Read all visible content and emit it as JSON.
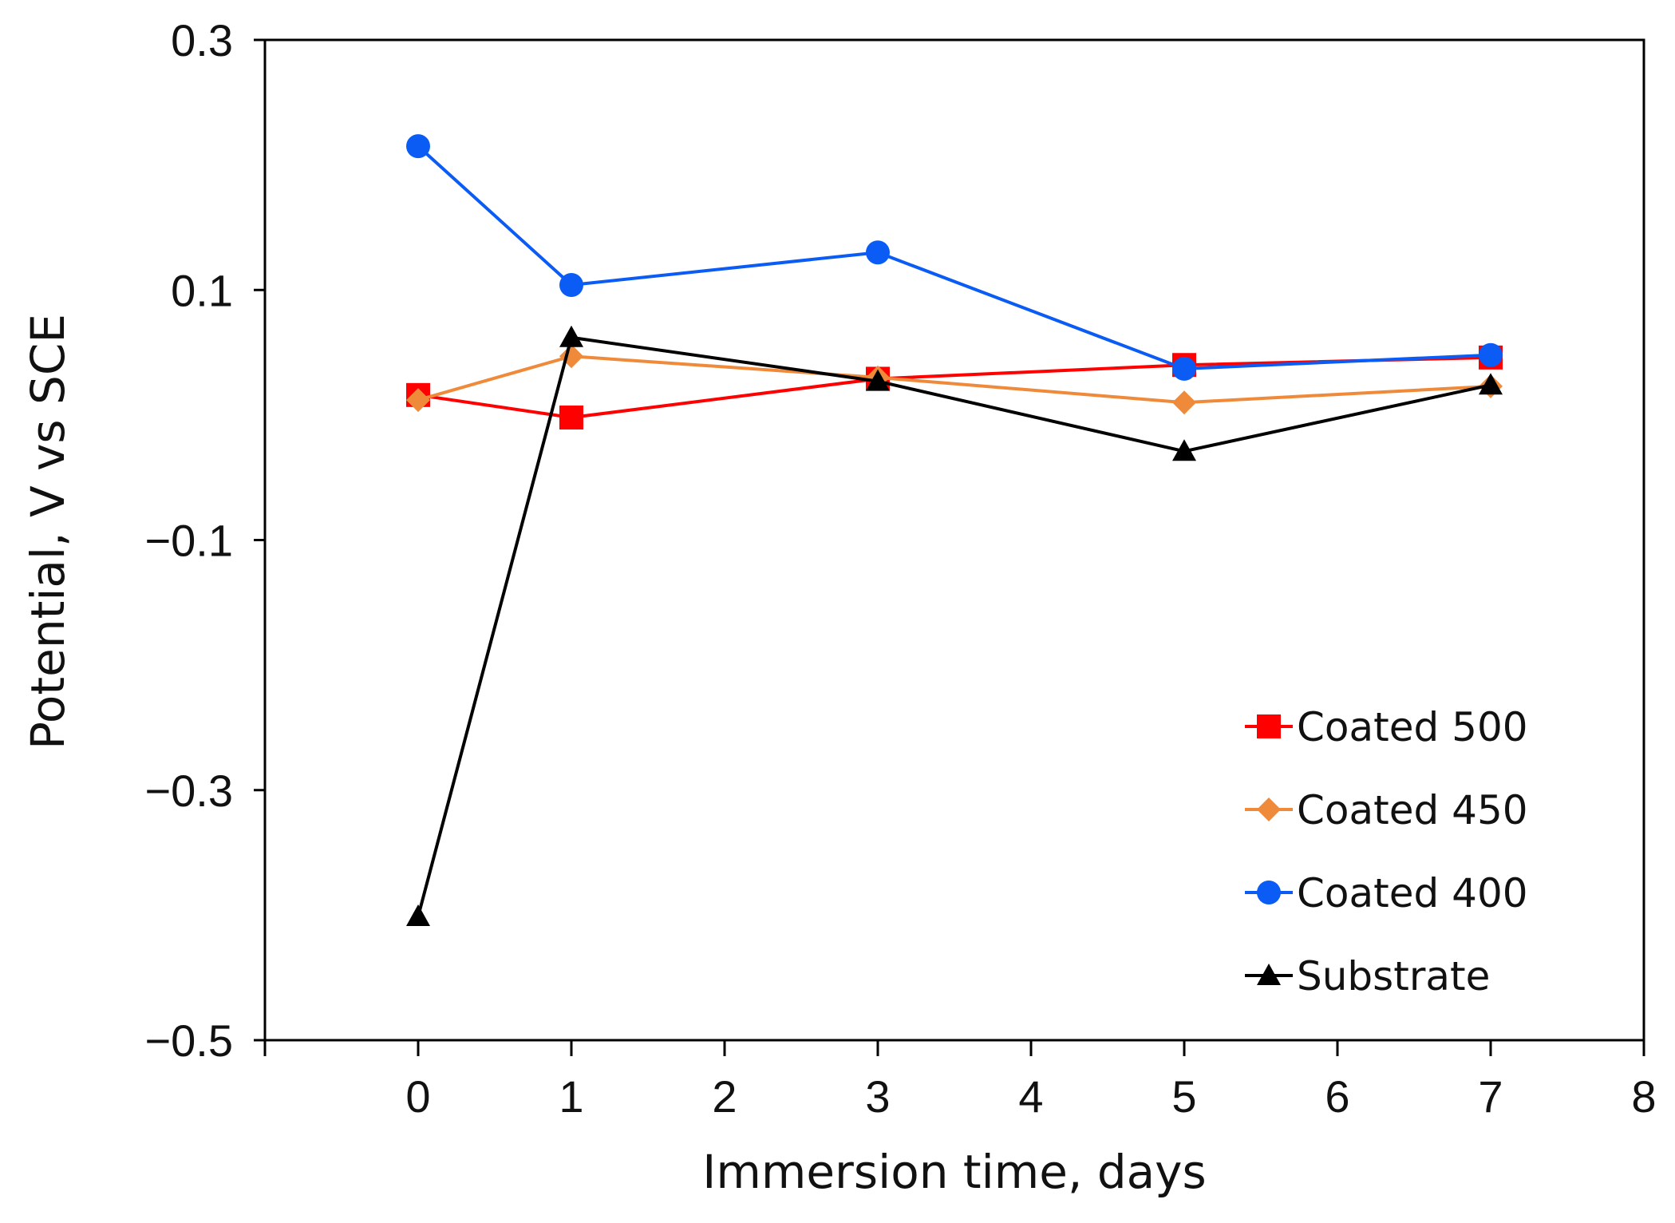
{
  "chart_data": {
    "type": "line",
    "title": "",
    "xlabel": "Immersion time, days",
    "ylabel": "Potential, V vs SCE",
    "xlim": [
      -1,
      8
    ],
    "ylim": [
      -0.5,
      0.3
    ],
    "x_ticks": [
      0,
      1,
      2,
      3,
      4,
      5,
      6,
      7,
      8
    ],
    "x_tick_labels": [
      "0",
      "1",
      "2",
      "3",
      "4",
      "5",
      "6",
      "7",
      "8"
    ],
    "y_ticks": [
      0.3,
      0.1,
      -0.1,
      -0.3,
      -0.5
    ],
    "y_tick_labels": [
      "0.3",
      "0.1",
      "−0.1",
      "−0.3",
      "−0.5"
    ],
    "grid": false,
    "legend_position": "lower-right",
    "x": [
      0,
      1,
      3,
      5,
      7
    ],
    "series": [
      {
        "name": "Coated 500",
        "color": "#ff0000",
        "marker": "square",
        "values": [
          0.016,
          -0.002,
          0.029,
          0.04,
          0.046
        ]
      },
      {
        "name": "Coated 450",
        "color": "#ef8a3a",
        "marker": "diamond",
        "values": [
          0.012,
          0.047,
          0.03,
          0.01,
          0.023
        ]
      },
      {
        "name": "Coated 400",
        "color": "#0a5cf5",
        "marker": "circle",
        "values": [
          0.215,
          0.104,
          0.13,
          0.037,
          0.048
        ]
      },
      {
        "name": "Substrate",
        "color": "#000000",
        "marker": "triangle",
        "values": [
          -0.401,
          0.062,
          0.027,
          -0.029,
          0.024
        ]
      }
    ]
  }
}
